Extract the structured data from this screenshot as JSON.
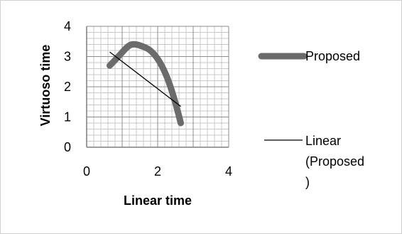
{
  "chart_data": {
    "type": "scatter",
    "title": "",
    "xlabel": "Linear time",
    "ylabel": "Virtuoso time",
    "xlim": [
      0,
      4
    ],
    "ylim": [
      0,
      4
    ],
    "x_ticks": [
      "0",
      "2",
      "4"
    ],
    "y_ticks": [
      "0",
      "1",
      "2",
      "3",
      "4"
    ],
    "grid": true,
    "legend_position": "right",
    "series": [
      {
        "name": "Proposed",
        "style": "smoothed-line",
        "color": "#6b6b6b",
        "x": [
          0.65,
          1.65,
          2.65
        ],
        "y": [
          2.7,
          3.3,
          0.8
        ]
      },
      {
        "name": "Linear\n(Proposed\n)",
        "legend_lines": [
          "Linear",
          "(Proposed",
          ")"
        ],
        "style": "trendline",
        "color": "#000000",
        "x": [
          0.65,
          2.65
        ],
        "y": [
          3.15,
          1.35
        ]
      }
    ]
  }
}
